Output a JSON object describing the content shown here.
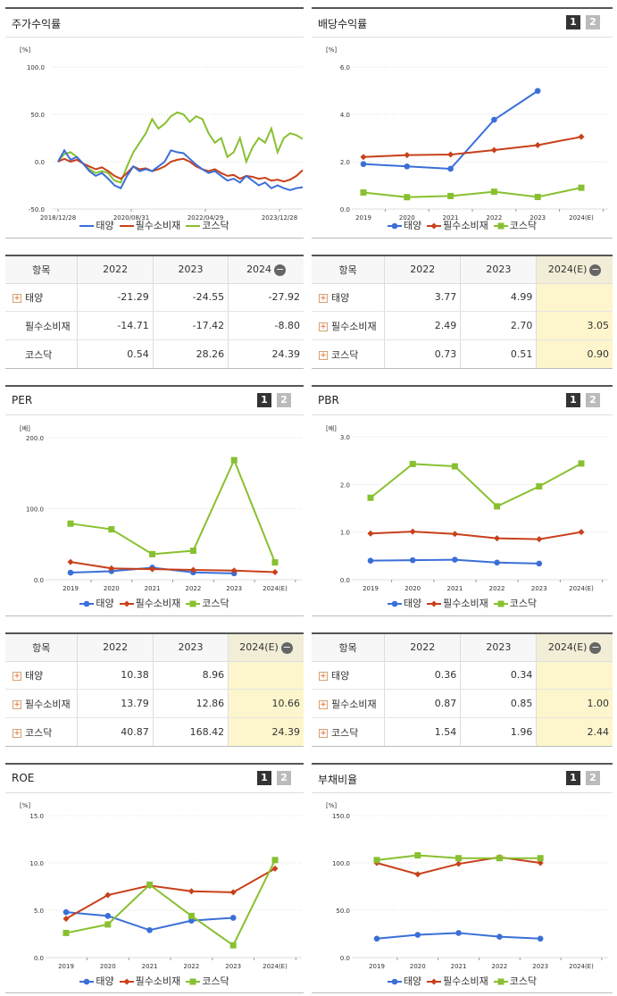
{
  "colors": {
    "taeyang": "#3a6fd8",
    "pilsu": "#c8401a",
    "kosdaq": "#88c030"
  },
  "legend": [
    "태양",
    "필수소비재",
    "코스닥"
  ],
  "paging": {
    "p1": "1",
    "p2": "2"
  },
  "charts": {
    "stock": {
      "title": "주가수익률",
      "unit": "[%]",
      "chart_data": {
        "type": "line",
        "ylim": [
          -50,
          100
        ],
        "yticks": [
          "100.0",
          "50.0",
          "0.0",
          "-50.0"
        ],
        "xticks": [
          "2018/12/28",
          "2020/08/31",
          "2022/04/29",
          "2023/12/28"
        ],
        "series": [
          {
            "name": "태양",
            "values": [
              0,
              12,
              2,
              5,
              -2,
              -10,
              -15,
              -12,
              -18,
              -25,
              -28,
              -15,
              -5,
              -10,
              -8,
              -10,
              -5,
              0,
              12,
              10,
              9,
              3,
              -3,
              -8,
              -12,
              -10,
              -15,
              -20,
              -18,
              -22,
              -15,
              -20,
              -25,
              -22,
              -28,
              -25,
              -28,
              -30,
              -28,
              -27
            ]
          },
          {
            "name": "필수소비재",
            "values": [
              0,
              3,
              0,
              2,
              -2,
              -5,
              -8,
              -6,
              -10,
              -15,
              -18,
              -12,
              -5,
              -8,
              -7,
              -10,
              -8,
              -5,
              0,
              2,
              3,
              0,
              -5,
              -8,
              -10,
              -8,
              -12,
              -15,
              -14,
              -18,
              -15,
              -16,
              -18,
              -17,
              -20,
              -19,
              -21,
              -19,
              -15,
              -9
            ]
          },
          {
            "name": "코스닥",
            "values": [
              0,
              8,
              10,
              5,
              -2,
              -8,
              -12,
              -10,
              -12,
              -20,
              -22,
              -5,
              10,
              20,
              30,
              45,
              35,
              40,
              48,
              52,
              50,
              42,
              48,
              45,
              30,
              20,
              25,
              5,
              10,
              25,
              0,
              15,
              25,
              20,
              35,
              10,
              25,
              30,
              28,
              24
            ]
          }
        ]
      }
    },
    "dividend": {
      "title": "배당수익률",
      "unit": "[%]",
      "chart_data": {
        "type": "line",
        "ylim": [
          0,
          6
        ],
        "yticks": [
          "6.0",
          "4.0",
          "2.0",
          "0.0"
        ],
        "categories": [
          "2019",
          "2020",
          "2021",
          "2022",
          "2023",
          "2024(E)"
        ],
        "series": [
          {
            "name": "태양",
            "values": [
              1.9,
              1.8,
              1.7,
              3.77,
              4.99,
              null
            ]
          },
          {
            "name": "필수소비재",
            "values": [
              2.2,
              2.28,
              2.3,
              2.49,
              2.7,
              3.05
            ]
          },
          {
            "name": "코스닥",
            "values": [
              0.7,
              0.5,
              0.55,
              0.73,
              0.51,
              0.9
            ]
          }
        ]
      }
    },
    "per": {
      "title": "PER",
      "unit": "[배]",
      "chart_data": {
        "type": "line",
        "ylim": [
          0,
          200
        ],
        "yticks": [
          "200.0",
          "100.0",
          "0.0"
        ],
        "categories": [
          "2019",
          "2020",
          "2021",
          "2022",
          "2023",
          "2024(E)"
        ],
        "series": [
          {
            "name": "태양",
            "values": [
              10,
              12,
              17,
              10.38,
              8.96,
              null
            ]
          },
          {
            "name": "필수소비재",
            "values": [
              25,
              16,
              15,
              13.79,
              12.86,
              10.66
            ]
          },
          {
            "name": "코스닥",
            "values": [
              79,
              71,
              36,
              40.87,
              168.42,
              24.39
            ]
          }
        ]
      }
    },
    "pbr": {
      "title": "PBR",
      "unit": "[배]",
      "chart_data": {
        "type": "line",
        "ylim": [
          0,
          3
        ],
        "yticks": [
          "3.0",
          "2.0",
          "1.0",
          "0.0"
        ],
        "categories": [
          "2019",
          "2020",
          "2021",
          "2022",
          "2023",
          "2024(E)"
        ],
        "series": [
          {
            "name": "태양",
            "values": [
              0.4,
              0.41,
              0.42,
              0.36,
              0.34,
              null
            ]
          },
          {
            "name": "필수소비재",
            "values": [
              0.97,
              1.01,
              0.96,
              0.87,
              0.85,
              1.0
            ]
          },
          {
            "name": "코스닥",
            "values": [
              1.72,
              2.43,
              2.38,
              1.54,
              1.96,
              2.44
            ]
          }
        ]
      }
    },
    "roe": {
      "title": "ROE",
      "unit": "[%]",
      "chart_data": {
        "type": "line",
        "ylim": [
          0,
          15
        ],
        "yticks": [
          "15.0",
          "10.0",
          "5.0",
          "0.0"
        ],
        "categories": [
          "2019",
          "2020",
          "2021",
          "2022",
          "2023",
          "2024(E)"
        ],
        "series": [
          {
            "name": "태양",
            "values": [
              4.8,
              4.4,
              2.9,
              3.9,
              4.2,
              null
            ]
          },
          {
            "name": "필수소비재",
            "values": [
              4.1,
              6.6,
              7.6,
              7.0,
              6.9,
              9.4
            ]
          },
          {
            "name": "코스닥",
            "values": [
              2.6,
              3.5,
              7.7,
              4.4,
              1.3,
              10.3
            ]
          }
        ]
      }
    },
    "debt": {
      "title": "부채비율",
      "unit": "[%]",
      "chart_data": {
        "type": "line",
        "ylim": [
          0,
          150
        ],
        "yticks": [
          "150.0",
          "100.0",
          "50.0",
          "0.0"
        ],
        "categories": [
          "2019",
          "2020",
          "2021",
          "2022",
          "2023",
          "2024(E)"
        ],
        "series": [
          {
            "name": "태양",
            "values": [
              20,
              24,
              26,
              22,
              20,
              null
            ]
          },
          {
            "name": "필수소비재",
            "values": [
              100,
              88,
              99,
              106,
              100,
              null
            ]
          },
          {
            "name": "코스닥",
            "values": [
              103,
              108,
              105,
              105,
              105,
              null
            ]
          }
        ]
      }
    }
  },
  "tables": {
    "stock": {
      "headers": [
        "항목",
        "2022",
        "2023",
        "2024"
      ],
      "rows": [
        {
          "name": "태양",
          "plus": true,
          "vals": [
            "-21.29",
            "-24.55",
            "-27.92"
          ]
        },
        {
          "name": "필수소비재",
          "plus": false,
          "vals": [
            "-14.71",
            "-17.42",
            "-8.80"
          ]
        },
        {
          "name": "코스닥",
          "plus": false,
          "vals": [
            "0.54",
            "28.26",
            "24.39"
          ]
        }
      ]
    },
    "dividend": {
      "headers": [
        "항목",
        "2022",
        "2023",
        "2024(E)"
      ],
      "rows": [
        {
          "name": "태양",
          "plus": true,
          "vals": [
            "3.77",
            "4.99",
            ""
          ]
        },
        {
          "name": "필수소비재",
          "plus": true,
          "vals": [
            "2.49",
            "2.70",
            "3.05"
          ]
        },
        {
          "name": "코스닥",
          "plus": true,
          "vals": [
            "0.73",
            "0.51",
            "0.90"
          ]
        }
      ]
    },
    "per": {
      "headers": [
        "항목",
        "2022",
        "2023",
        "2024(E)"
      ],
      "rows": [
        {
          "name": "태양",
          "plus": true,
          "vals": [
            "10.38",
            "8.96",
            ""
          ]
        },
        {
          "name": "필수소비재",
          "plus": true,
          "vals": [
            "13.79",
            "12.86",
            "10.66"
          ]
        },
        {
          "name": "코스닥",
          "plus": true,
          "vals": [
            "40.87",
            "168.42",
            "24.39"
          ]
        }
      ]
    },
    "pbr": {
      "headers": [
        "항목",
        "2022",
        "2023",
        "2024(E)"
      ],
      "rows": [
        {
          "name": "태양",
          "plus": true,
          "vals": [
            "0.36",
            "0.34",
            ""
          ]
        },
        {
          "name": "필수소비재",
          "plus": true,
          "vals": [
            "0.87",
            "0.85",
            "1.00"
          ]
        },
        {
          "name": "코스닥",
          "plus": true,
          "vals": [
            "1.54",
            "1.96",
            "2.44"
          ]
        }
      ]
    }
  }
}
